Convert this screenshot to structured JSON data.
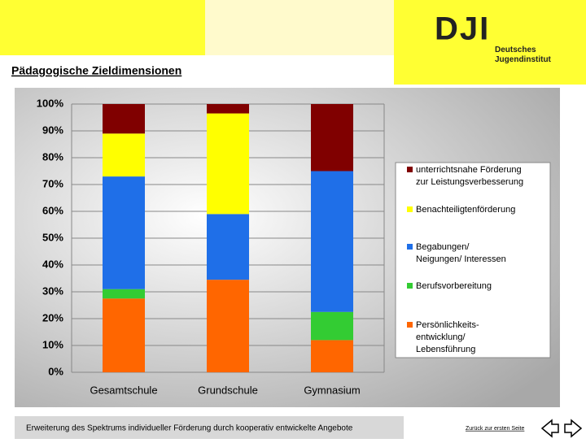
{
  "header": {
    "title": "Pädagogische Zieldimensionen",
    "logo": "DJI",
    "logo_name": "Deutsches\nJugendinstitut"
  },
  "chart_data": {
    "type": "stacked_bar",
    "categories": [
      "Gesamtschule",
      "Grundschule",
      "Gymnasium"
    ],
    "series": [
      {
        "name": "unterrichtsnahe Förderung\nzur Leistungsverbesserung",
        "color": "#800000",
        "values": [
          11,
          3.5,
          25
        ]
      },
      {
        "name": "Benachteiligtenförderung",
        "color": "#ffff00",
        "values": [
          16,
          37.5,
          0
        ]
      },
      {
        "name": "Begabungen/\nNeigungen/ Interessen",
        "color": "#1f6fe8",
        "values": [
          42,
          24.5,
          52.5
        ]
      },
      {
        "name": "Berufsvorbereitung",
        "color": "#33cc33",
        "values": [
          3.5,
          0,
          10.5
        ]
      },
      {
        "name": "Persönlichkeits-\nentwicklung/\nLebensführung",
        "color": "#ff6600",
        "values": [
          27.5,
          34.5,
          12
        ]
      }
    ],
    "ylim": [
      0,
      100
    ],
    "yticks": [
      {
        "value": 0,
        "label": "0%"
      },
      {
        "value": 10,
        "label": "10%"
      },
      {
        "value": 20,
        "label": "20%"
      },
      {
        "value": 30,
        "label": "30%"
      },
      {
        "value": 40,
        "label": "40%"
      },
      {
        "value": 50,
        "label": "50%"
      },
      {
        "value": 60,
        "label": "60%"
      },
      {
        "value": 70,
        "label": "70%"
      },
      {
        "value": 80,
        "label": "80%"
      },
      {
        "value": 90,
        "label": "90%"
      },
      {
        "value": 100,
        "label": "100%"
      }
    ],
    "grid": true,
    "legend": "right"
  },
  "footer": {
    "text": "Erweiterung des Spektrums individueller Förderung durch kooperativ entwickelte Angebote",
    "link": "Zurück zur ersten Seite"
  }
}
